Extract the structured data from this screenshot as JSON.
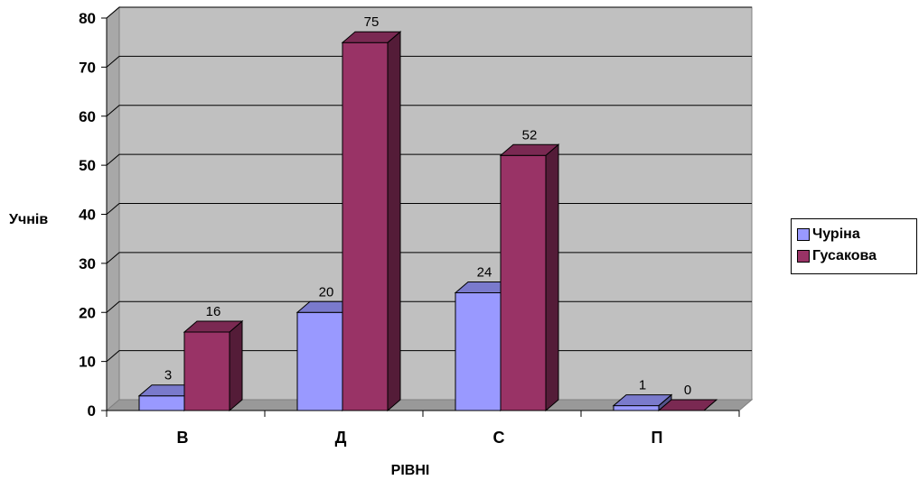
{
  "chart_data": {
    "type": "bar",
    "categories": [
      "В",
      "Д",
      "С",
      "П"
    ],
    "series": [
      {
        "name": "Чуріна",
        "values": [
          3,
          20,
          24,
          1
        ],
        "color": "#9999ff"
      },
      {
        "name": "Гусакова",
        "values": [
          16,
          75,
          52,
          0
        ],
        "color": "#993366"
      }
    ],
    "ylabel": "Учнів",
    "xlabel": "РІВНІ",
    "ylim": [
      0,
      80
    ],
    "yticks": [
      0,
      10,
      20,
      30,
      40,
      50,
      60,
      70,
      80
    ],
    "grid": true,
    "legend": "right",
    "style": "3d-clustered-column",
    "colors": {
      "wall": "#c0c0c0",
      "floor": "#999999",
      "gridline": "#000000"
    }
  }
}
